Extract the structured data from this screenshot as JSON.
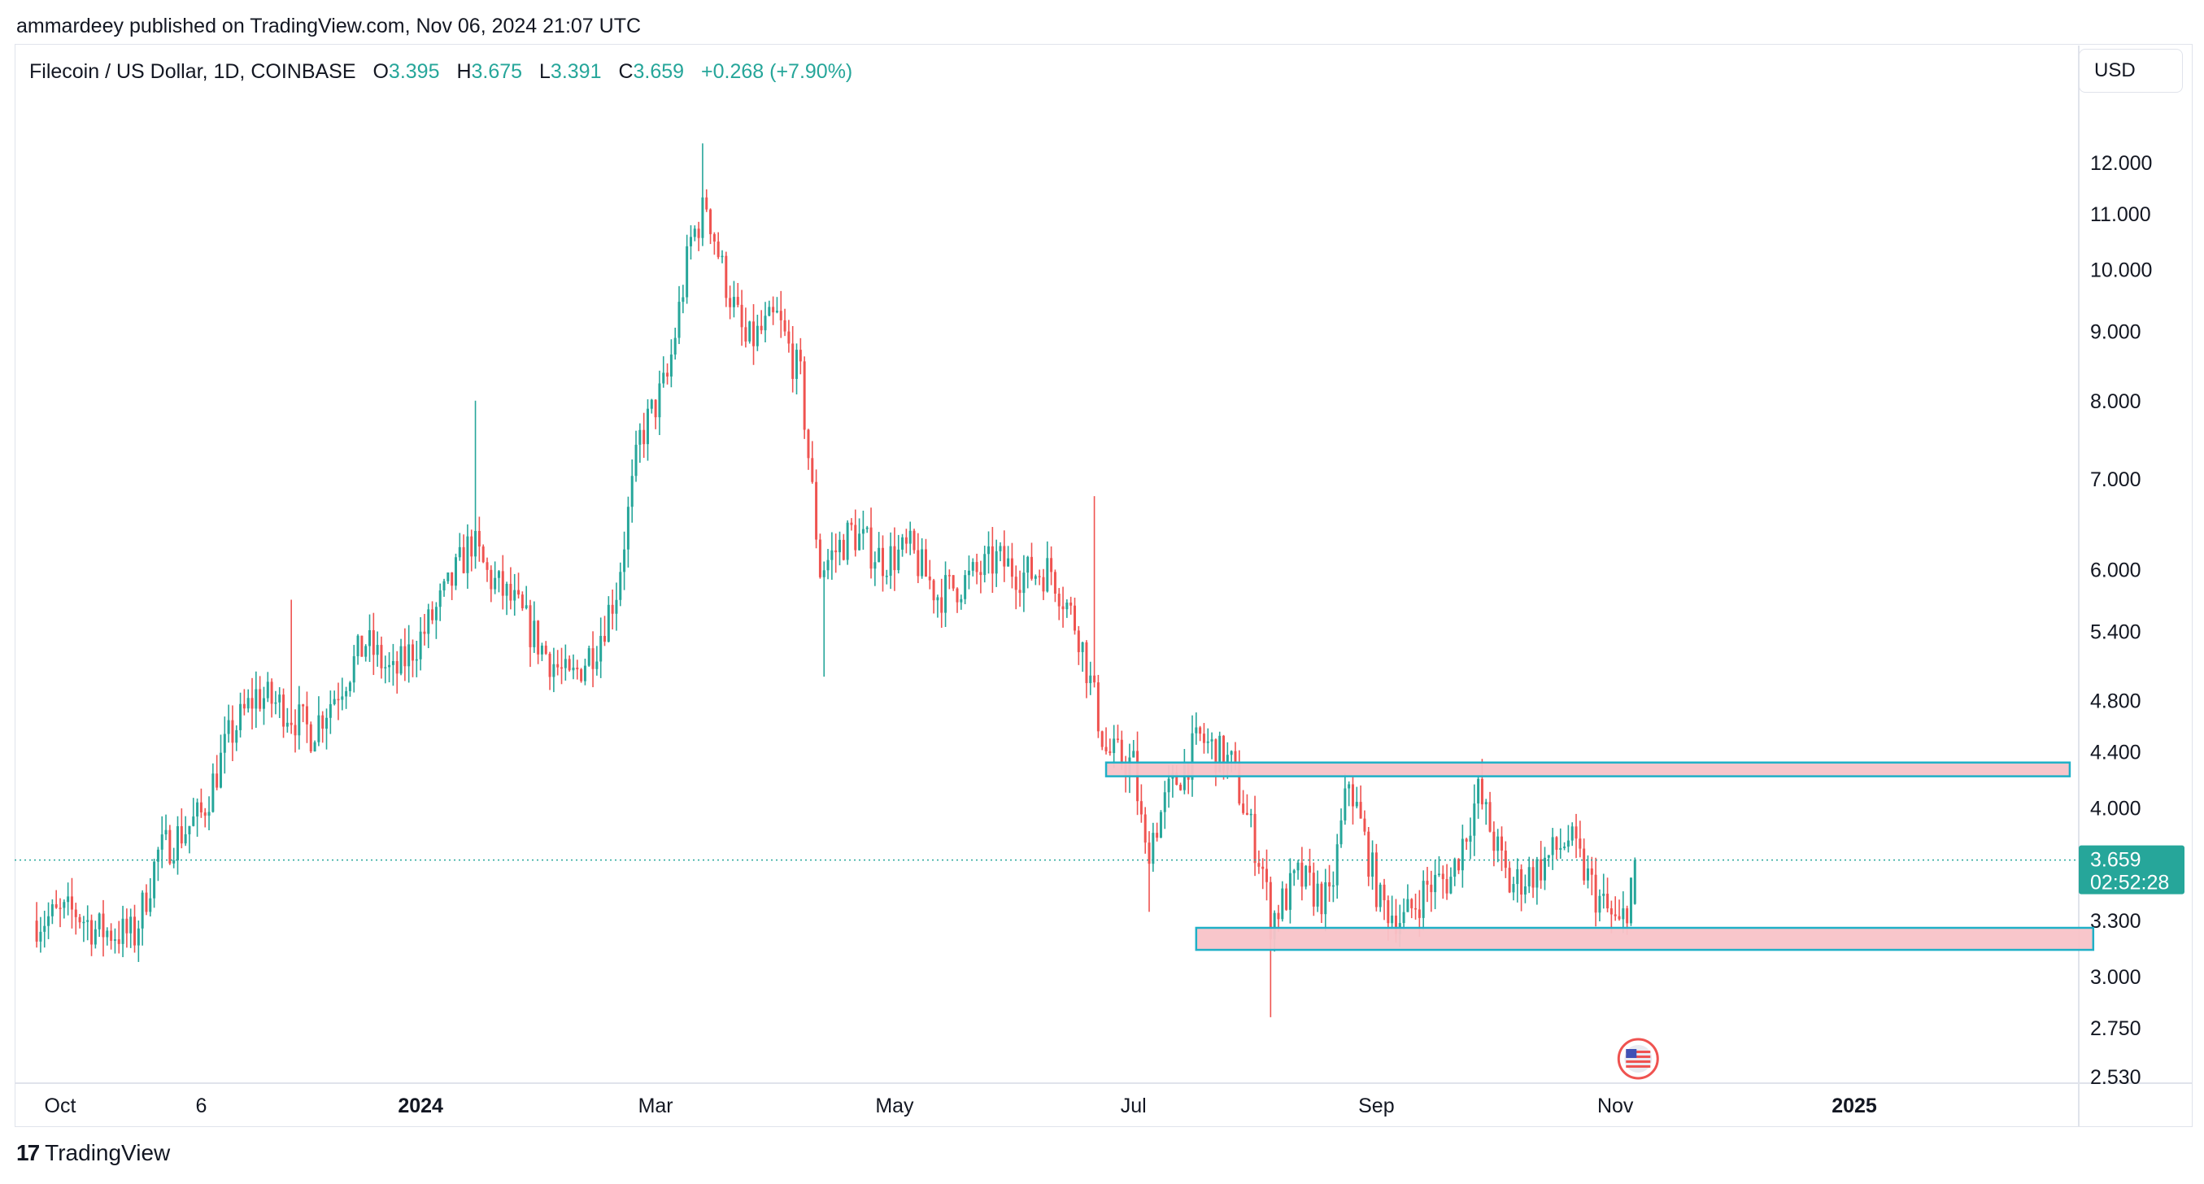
{
  "header": {
    "published": "ammardeey published on TradingView.com, Nov 06, 2024 21:07 UTC"
  },
  "legend": {
    "symbol": "Filecoin / US Dollar, 1D, COINBASE",
    "open_label": "O",
    "open": "3.395",
    "high_label": "H",
    "high": "3.675",
    "low_label": "L",
    "low": "3.391",
    "close_label": "C",
    "close": "3.659",
    "change": "+0.268 (+7.90%)"
  },
  "currency_button": "USD",
  "price_label": {
    "price": "3.659",
    "countdown": "02:52:28"
  },
  "footer": {
    "brand": "TradingView",
    "logo_mark": "17"
  },
  "colors": {
    "up": "#26a69a",
    "down": "#ef5350",
    "zone_fill": "#f8c3c8",
    "zone_border": "#1fb0c7",
    "last_price": "#26a69a"
  },
  "icons": {
    "event_marker": "us-flag-icon"
  },
  "chart_data": {
    "type": "candlestick",
    "scale": "log",
    "y_ticks": [
      "12.000",
      "11.000",
      "10.000",
      "9.000",
      "8.000",
      "7.000",
      "6.000",
      "5.400",
      "4.800",
      "4.400",
      "4.000",
      "3.300",
      "3.000",
      "2.750",
      "2.530"
    ],
    "x_ticks": [
      {
        "label": "Oct",
        "date": "2023-10-01",
        "bold": false
      },
      {
        "label": "6",
        "date": "2023-11-06",
        "bold": false
      },
      {
        "label": "2024",
        "date": "2024-01-01",
        "bold": true
      },
      {
        "label": "Mar",
        "date": "2024-03-01",
        "bold": false
      },
      {
        "label": "May",
        "date": "2024-05-01",
        "bold": false
      },
      {
        "label": "Jul",
        "date": "2024-07-01",
        "bold": false
      },
      {
        "label": "Sep",
        "date": "2024-09-01",
        "bold": false
      },
      {
        "label": "Nov",
        "date": "2024-11-01",
        "bold": false
      },
      {
        "label": "2025",
        "date": "2025-01-01",
        "bold": true
      }
    ],
    "start_date": "2023-09-25",
    "last_date": "2024-11-06",
    "last_price": 3.659,
    "candles_anchor": [
      [
        "2023-09-25",
        3.3
      ],
      [
        "2023-10-05",
        3.35
      ],
      [
        "2023-10-10",
        3.25
      ],
      [
        "2023-10-20",
        3.22
      ],
      [
        "2023-10-26",
        3.7
      ],
      [
        "2023-11-06",
        3.95
      ],
      [
        "2023-11-13",
        4.5
      ],
      [
        "2023-11-20",
        4.85
      ],
      [
        "2023-11-27",
        4.75
      ],
      [
        "2023-12-04",
        4.55
      ],
      [
        "2023-12-11",
        4.9
      ],
      [
        "2023-12-18",
        5.3
      ],
      [
        "2023-12-25",
        5.0
      ],
      [
        "2024-01-02",
        5.4
      ],
      [
        "2024-01-08",
        5.8
      ],
      [
        "2024-01-14",
        6.3
      ],
      [
        "2024-01-18",
        5.95
      ],
      [
        "2024-01-25",
        5.65
      ],
      [
        "2024-02-01",
        5.25
      ],
      [
        "2024-02-08",
        4.95
      ],
      [
        "2024-02-15",
        5.3
      ],
      [
        "2024-02-20",
        5.8
      ],
      [
        "2024-02-26",
        7.5
      ],
      [
        "2024-03-04",
        8.3
      ],
      [
        "2024-03-10",
        10.5
      ],
      [
        "2024-03-14",
        11.2
      ],
      [
        "2024-03-18",
        10.0
      ],
      [
        "2024-03-24",
        8.8
      ],
      [
        "2024-04-01",
        9.2
      ],
      [
        "2024-04-07",
        8.3
      ],
      [
        "2024-04-12",
        6.0
      ],
      [
        "2024-04-20",
        6.4
      ],
      [
        "2024-04-28",
        6.1
      ],
      [
        "2024-05-05",
        6.2
      ],
      [
        "2024-05-12",
        5.75
      ],
      [
        "2024-05-20",
        5.9
      ],
      [
        "2024-05-27",
        6.1
      ],
      [
        "2024-06-03",
        5.95
      ],
      [
        "2024-06-10",
        6.0
      ],
      [
        "2024-06-17",
        5.4
      ],
      [
        "2024-06-24",
        4.4
      ],
      [
        "2024-07-01",
        4.3
      ],
      [
        "2024-07-04",
        3.7
      ],
      [
        "2024-07-10",
        4.1
      ],
      [
        "2024-07-18",
        4.5
      ],
      [
        "2024-07-26",
        4.3
      ],
      [
        "2024-08-03",
        3.6
      ],
      [
        "2024-08-05",
        3.3
      ],
      [
        "2024-08-12",
        3.55
      ],
      [
        "2024-08-20",
        3.4
      ],
      [
        "2024-08-25",
        4.2
      ],
      [
        "2024-09-02",
        3.4
      ],
      [
        "2024-09-08",
        3.3
      ],
      [
        "2024-09-14",
        3.5
      ],
      [
        "2024-09-20",
        3.55
      ],
      [
        "2024-09-27",
        4.1
      ],
      [
        "2024-10-05",
        3.5
      ],
      [
        "2024-10-12",
        3.6
      ],
      [
        "2024-10-20",
        3.8
      ],
      [
        "2024-10-27",
        3.45
      ],
      [
        "2024-11-02",
        3.25
      ],
      [
        "2024-11-04",
        3.4
      ],
      [
        "2024-11-06",
        3.659
      ]
    ],
    "zones": [
      {
        "name": "resistance",
        "x1": "2024-06-24",
        "x2": "2025-02-25",
        "y_low": 4.22,
        "y_high": 4.32
      },
      {
        "name": "support",
        "x1": "2024-07-17",
        "x2": "2025-03-03",
        "y_low": 3.14,
        "y_high": 3.26
      }
    ]
  }
}
